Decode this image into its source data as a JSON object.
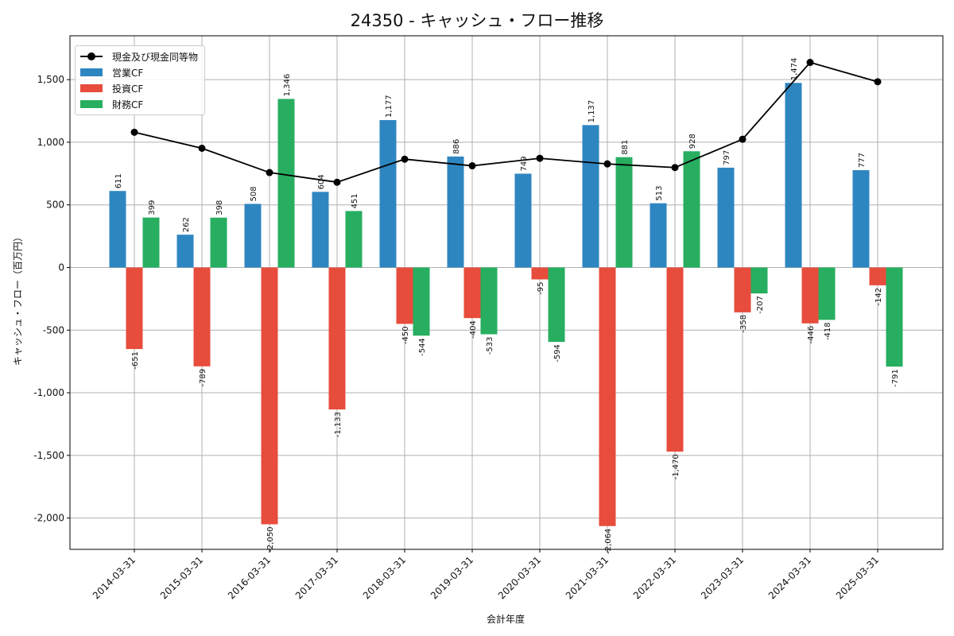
{
  "chart_data": {
    "type": "bar",
    "title": "24350 - キャッシュ・フロー推移",
    "xlabel": "会計年度",
    "ylabel": "キャッシュ・フロー（百万円）",
    "categories": [
      "2014-03-31",
      "2015-03-31",
      "2016-03-31",
      "2017-03-31",
      "2018-03-31",
      "2019-03-31",
      "2020-03-31",
      "2021-03-31",
      "2022-03-31",
      "2023-03-31",
      "2024-03-31",
      "2025-03-31"
    ],
    "ylim": [
      -2250,
      1850
    ],
    "yticks": [
      -2000,
      -1500,
      -1000,
      -500,
      0,
      500,
      1000,
      1500
    ],
    "ytick_labels": [
      "-2,000",
      "-1,500",
      "-1,000",
      "-500",
      "0",
      "500",
      "1,000",
      "1,500"
    ],
    "grid": true,
    "legend_position": "top-left",
    "series": [
      {
        "name": "営業CF",
        "color": "#2e86c1",
        "values": [
          611,
          262,
          508,
          604,
          1177,
          886,
          749,
          1137,
          513,
          797,
          1474,
          777
        ],
        "labels": [
          "611",
          "262",
          "508",
          "604",
          "1,177",
          "886",
          "749",
          "1,137",
          "513",
          "797",
          "1,474",
          "777"
        ]
      },
      {
        "name": "投資CF",
        "color": "#e74c3c",
        "values": [
          -651,
          -789,
          -2050,
          -1133,
          -450,
          -404,
          -95,
          -2064,
          -1470,
          -358,
          -446,
          -142
        ],
        "labels": [
          "-651",
          "-789",
          "-2,050",
          "-1,133",
          "-450",
          "-404",
          "-95",
          "-2,064",
          "-1,470",
          "-358",
          "-446",
          "-142"
        ]
      },
      {
        "name": "財務CF",
        "color": "#27ae60",
        "values": [
          399,
          398,
          1346,
          451,
          -544,
          -533,
          -594,
          881,
          928,
          -207,
          -418,
          -791
        ],
        "labels": [
          "399",
          "398",
          "1,346",
          "451",
          "-544",
          "-533",
          "-594",
          "881",
          "928",
          "-207",
          "-418",
          "-791"
        ]
      }
    ],
    "line_series": {
      "name": "現金及び現金同等物",
      "color": "#000000",
      "values": [
        1080,
        952,
        758,
        681,
        865,
        812,
        872,
        827,
        798,
        1024,
        1637,
        1483
      ]
    }
  }
}
